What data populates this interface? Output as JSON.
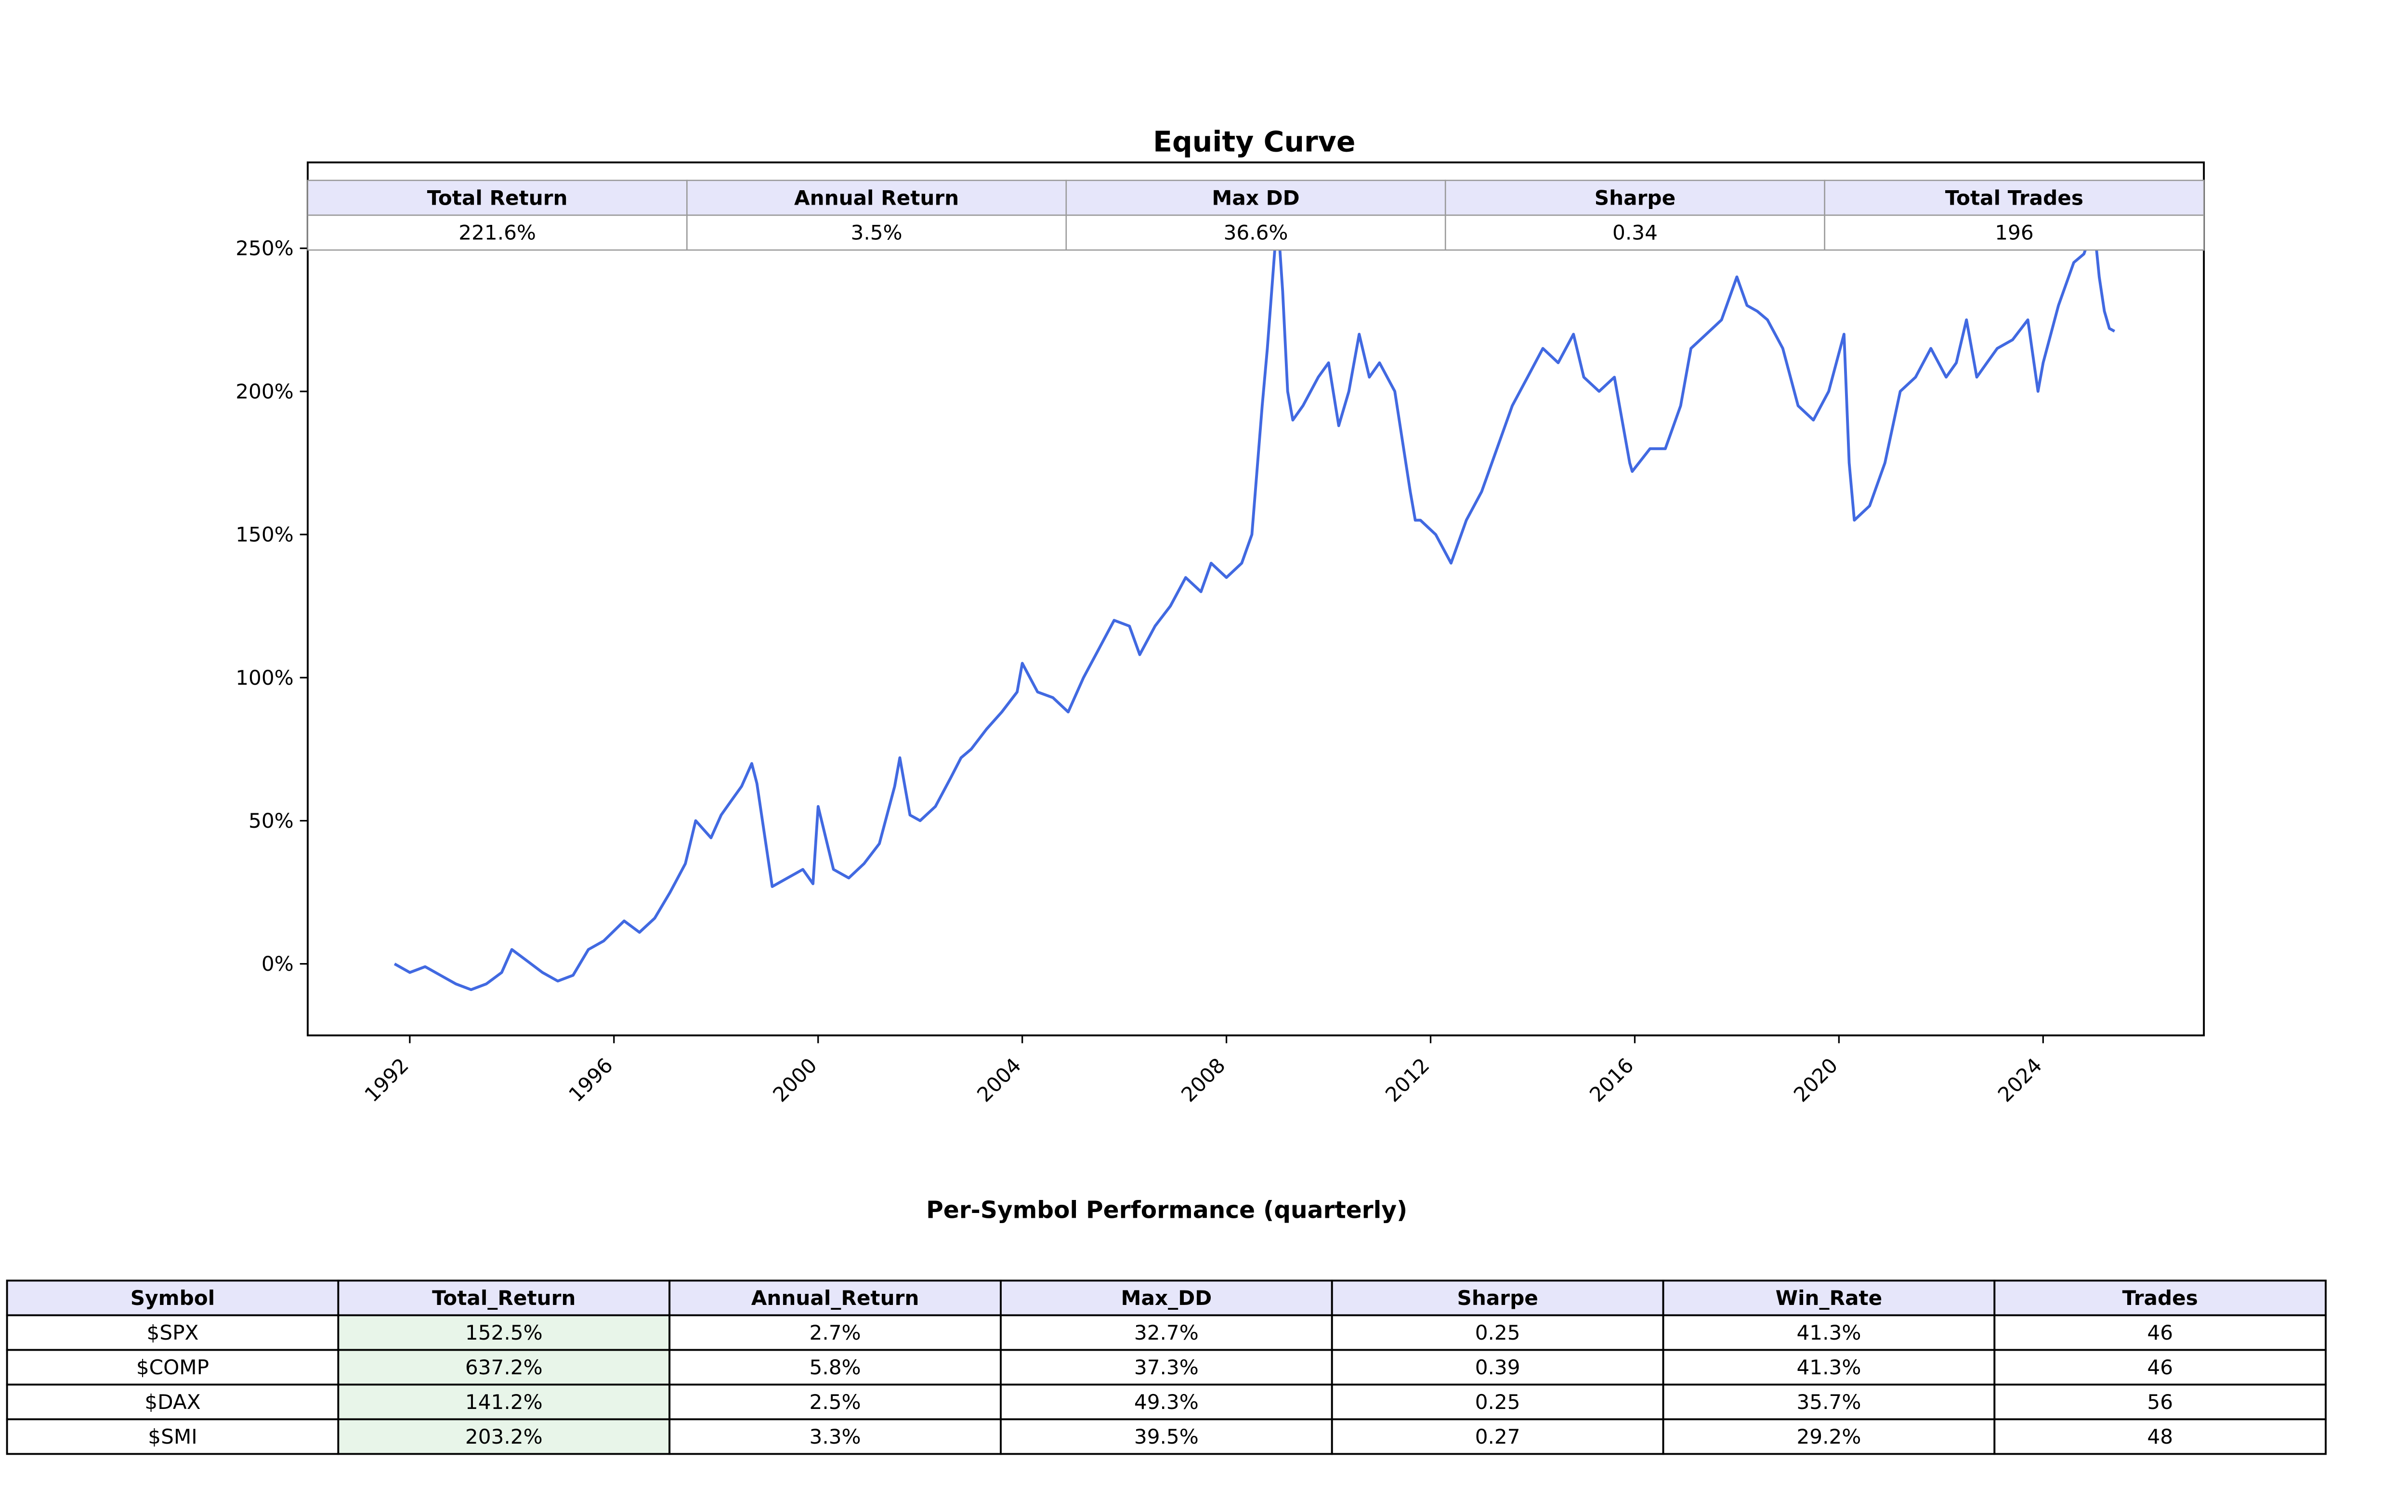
{
  "chart_data": [
    {
      "type": "line",
      "title": "Equity Curve",
      "xlabel": "",
      "ylabel": "",
      "xlim": [
        1990.0,
        2027.15
      ],
      "ylim": [
        -25,
        280
      ],
      "x_ticks": [
        1992,
        1996,
        2000,
        2004,
        2008,
        2012,
        2016,
        2020,
        2024
      ],
      "x_tick_labels": [
        "1992",
        "1996",
        "2000",
        "2004",
        "2008",
        "2012",
        "2016",
        "2020",
        "2024"
      ],
      "y_ticks": [
        0,
        50,
        100,
        150,
        200,
        250
      ],
      "y_tick_labels": [
        "0%",
        "50%",
        "100%",
        "150%",
        "200%",
        "250%"
      ],
      "grid": false,
      "line_color": "#4169e1",
      "series": [
        {
          "x": [
            1991.7,
            1992.0,
            1992.3,
            1992.6,
            1992.9,
            1993.2,
            1993.5,
            1993.8,
            1994.0,
            1994.3,
            1994.6,
            1994.9,
            1995.2,
            1995.5,
            1995.8,
            1996.2,
            1996.5,
            1996.8,
            1997.1,
            1997.4,
            1997.6,
            1997.9,
            1998.1,
            1998.3,
            1998.5,
            1998.7,
            1998.8,
            1999.1,
            1999.4,
            1999.7,
            1999.9,
            2000.0,
            2000.3,
            2000.6,
            2000.9,
            2001.2,
            2001.5,
            2001.6,
            2001.8,
            2002.0,
            2002.3,
            2002.6,
            2002.8,
            2003.0,
            2003.3,
            2003.6,
            2003.9,
            2004.0,
            2004.3,
            2004.6,
            2004.9,
            2005.2,
            2005.5,
            2005.8,
            2006.1,
            2006.3,
            2006.6,
            2006.9,
            2007.2,
            2007.5,
            2007.7,
            2008.0,
            2008.3,
            2008.5,
            2008.7,
            2008.8,
            2009.0,
            2009.1,
            2009.2,
            2009.3,
            2009.5,
            2009.8,
            2010.0,
            2010.2,
            2010.4,
            2010.6,
            2010.8,
            2011.0,
            2011.3,
            2011.6,
            2011.7,
            2011.8,
            2012.1,
            2012.4,
            2012.7,
            2013.0,
            2013.3,
            2013.6,
            2013.9,
            2014.2,
            2014.5,
            2014.8,
            2015.0,
            2015.3,
            2015.6,
            2015.9,
            2015.95,
            2016.3,
            2016.6,
            2016.9,
            2017.1,
            2017.4,
            2017.7,
            2018.0,
            2018.2,
            2018.4,
            2018.6,
            2018.9,
            2019.2,
            2019.5,
            2019.8,
            2020.1,
            2020.2,
            2020.3,
            2020.6,
            2020.9,
            2021.2,
            2021.5,
            2021.8,
            2022.1,
            2022.3,
            2022.5,
            2022.7,
            2022.9,
            2023.1,
            2023.4,
            2023.7,
            2023.9,
            2024.0,
            2024.3,
            2024.6,
            2024.8,
            2025.0,
            2025.1,
            2025.2,
            2025.3,
            2025.4
          ],
          "y": [
            0,
            -3,
            -1,
            -4,
            -7,
            -9,
            -7,
            -3,
            5,
            1,
            -3,
            -6,
            -4,
            5,
            8,
            15,
            11,
            16,
            25,
            35,
            50,
            44,
            52,
            57,
            62,
            70,
            63,
            27,
            30,
            33,
            28,
            55,
            33,
            30,
            35,
            42,
            62,
            72,
            52,
            50,
            55,
            65,
            72,
            75,
            82,
            88,
            95,
            105,
            95,
            93,
            88,
            100,
            110,
            120,
            118,
            108,
            118,
            125,
            135,
            130,
            140,
            135,
            140,
            150,
            195,
            215,
            262,
            235,
            200,
            190,
            195,
            205,
            210,
            188,
            200,
            220,
            205,
            210,
            200,
            165,
            155,
            155,
            150,
            140,
            155,
            165,
            180,
            195,
            205,
            215,
            210,
            220,
            205,
            200,
            205,
            175,
            172,
            180,
            180,
            195,
            215,
            220,
            225,
            240,
            230,
            228,
            225,
            215,
            195,
            190,
            200,
            220,
            175,
            155,
            160,
            175,
            200,
            205,
            215,
            205,
            210,
            225,
            205,
            210,
            215,
            218,
            225,
            200,
            210,
            230,
            245,
            248,
            258,
            240,
            228,
            222,
            221
          ]
        }
      ],
      "summary_table": {
        "columns": [
          "Total Return",
          "Annual Return",
          "Max DD",
          "Sharpe",
          "Total Trades"
        ],
        "rows": [
          [
            "221.6%",
            "3.5%",
            "36.6%",
            "0.34",
            "196"
          ]
        ]
      }
    },
    {
      "type": "table",
      "title": "Per-Symbol Performance (quarterly)",
      "columns": [
        "Symbol",
        "Total_Return",
        "Annual_Return",
        "Max_DD",
        "Sharpe",
        "Win_Rate",
        "Trades"
      ],
      "rows": [
        [
          "$SPX",
          "152.5%",
          "2.7%",
          "32.7%",
          "0.25",
          "41.3%",
          "46"
        ],
        [
          "$COMP",
          "637.2%",
          "5.8%",
          "37.3%",
          "0.39",
          "41.3%",
          "46"
        ],
        [
          "$DAX",
          "141.2%",
          "2.5%",
          "49.3%",
          "0.25",
          "35.7%",
          "56"
        ],
        [
          "$SMI",
          "203.2%",
          "3.3%",
          "39.5%",
          "0.27",
          "29.2%",
          "48"
        ]
      ],
      "header_color": "#e6e6fa",
      "highlight_column": "Total_Return",
      "highlight_color": "#e8f5e9"
    }
  ]
}
